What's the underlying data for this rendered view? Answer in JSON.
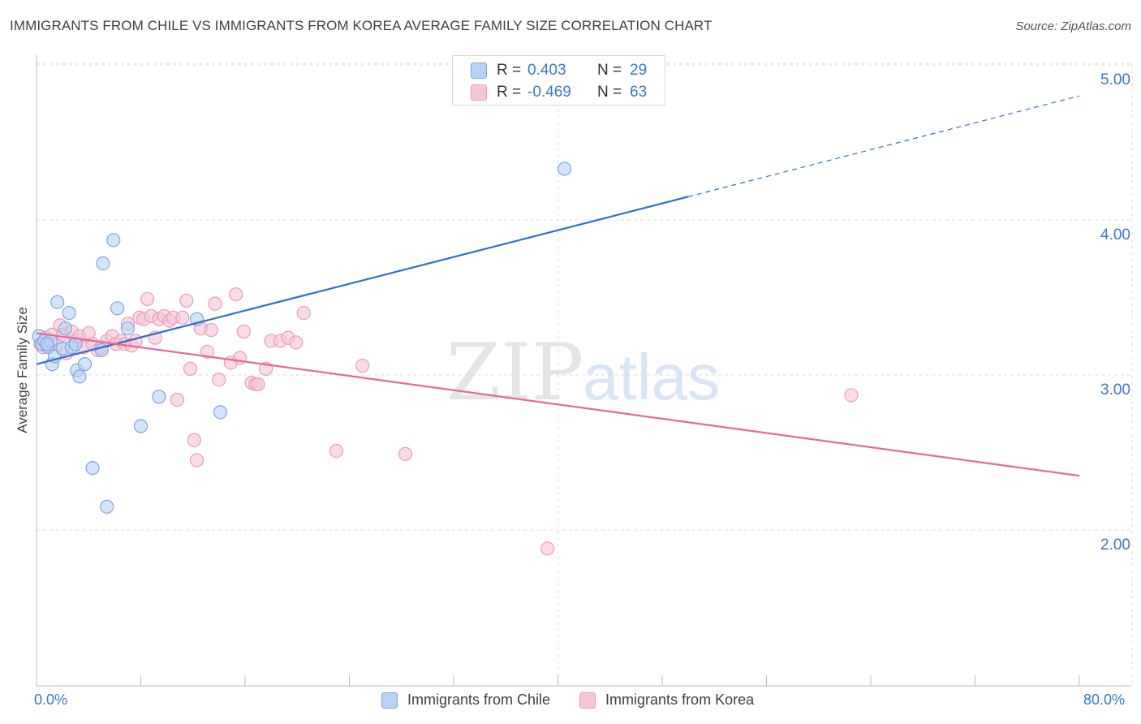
{
  "header": {
    "title": "IMMIGRANTS FROM CHILE VS IMMIGRANTS FROM KOREA AVERAGE FAMILY SIZE CORRELATION CHART",
    "source": "Source: ZipAtlas.com"
  },
  "watermark": {
    "zip": "ZIP",
    "atlas": "atlas"
  },
  "legend_top": {
    "chile": {
      "r_label": "R =",
      "r_value": "0.403",
      "n_label": "N =",
      "n_value": "29"
    },
    "korea": {
      "r_label": "R =",
      "r_value": "-0.469",
      "n_label": "N =",
      "n_value": "63"
    }
  },
  "colors": {
    "chile_fill": "#b8d2f5",
    "chile_stroke": "#7ba7e0",
    "chile_line": "#2e6fcf",
    "korea_fill": "#f8c5d6",
    "korea_stroke": "#eb9ab5",
    "korea_line": "#e46a95",
    "axis_text": "#3a78c9",
    "grid": "#dcdcdc"
  },
  "chart_data": {
    "type": "scatter",
    "title": "IMMIGRANTS FROM CHILE VS IMMIGRANTS FROM KOREA AVERAGE FAMILY SIZE CORRELATION CHART",
    "xlabel": "",
    "ylabel": "Average Family Size",
    "xlim": [
      0,
      80
    ],
    "ylim": [
      1.0,
      5.2
    ],
    "x_tick_labels": [
      "0.0%",
      "80.0%"
    ],
    "y_ticks": [
      2.0,
      3.0,
      4.0,
      5.0
    ],
    "y_tick_labels": [
      "2.00",
      "3.00",
      "4.00",
      "5.00"
    ],
    "grid": true,
    "legend": "bottom-center",
    "series": [
      {
        "name": "Immigrants from Chile",
        "r": 0.403,
        "n": 29,
        "trend": {
          "x0": 0,
          "y0": 3.07,
          "x1": 50,
          "y1": 4.15,
          "dashed_to_x": 80,
          "dashed_to_y": 4.8
        },
        "points": [
          [
            0.2,
            3.25
          ],
          [
            0.4,
            3.2
          ],
          [
            0.6,
            3.22
          ],
          [
            0.9,
            3.18
          ],
          [
            1.1,
            3.22
          ],
          [
            1.2,
            3.07
          ],
          [
            1.4,
            3.12
          ],
          [
            1.6,
            3.47
          ],
          [
            2.0,
            3.17
          ],
          [
            2.2,
            3.3
          ],
          [
            2.5,
            3.4
          ],
          [
            2.7,
            3.18
          ],
          [
            3.0,
            3.2
          ],
          [
            3.1,
            3.03
          ],
          [
            3.3,
            2.99
          ],
          [
            3.7,
            3.07
          ],
          [
            4.3,
            2.4
          ],
          [
            5.0,
            3.16
          ],
          [
            5.1,
            3.72
          ],
          [
            5.4,
            2.15
          ],
          [
            5.9,
            3.87
          ],
          [
            6.2,
            3.43
          ],
          [
            7.0,
            3.3
          ],
          [
            8.0,
            2.67
          ],
          [
            9.4,
            2.86
          ],
          [
            12.3,
            3.36
          ],
          [
            14.1,
            2.76
          ],
          [
            40.5,
            4.33
          ],
          [
            0.8,
            3.2
          ]
        ]
      },
      {
        "name": "Immigrants from Korea",
        "r": -0.469,
        "n": 63,
        "trend": {
          "x0": 0,
          "y0": 3.27,
          "x1": 80,
          "y1": 2.35
        },
        "points": [
          [
            0.3,
            3.2
          ],
          [
            0.5,
            3.18
          ],
          [
            0.7,
            3.24
          ],
          [
            0.9,
            3.19
          ],
          [
            1.2,
            3.26
          ],
          [
            1.5,
            3.2
          ],
          [
            1.8,
            3.32
          ],
          [
            2.0,
            3.26
          ],
          [
            2.3,
            3.14
          ],
          [
            2.7,
            3.28
          ],
          [
            3.0,
            3.22
          ],
          [
            3.3,
            3.25
          ],
          [
            3.6,
            3.18
          ],
          [
            4.0,
            3.27
          ],
          [
            4.3,
            3.2
          ],
          [
            4.7,
            3.16
          ],
          [
            5.0,
            3.18
          ],
          [
            5.4,
            3.22
          ],
          [
            5.8,
            3.25
          ],
          [
            6.1,
            3.2
          ],
          [
            6.5,
            3.22
          ],
          [
            6.8,
            3.2
          ],
          [
            7.0,
            3.33
          ],
          [
            7.3,
            3.19
          ],
          [
            7.6,
            3.22
          ],
          [
            7.9,
            3.37
          ],
          [
            8.2,
            3.36
          ],
          [
            8.5,
            3.49
          ],
          [
            8.8,
            3.38
          ],
          [
            9.1,
            3.24
          ],
          [
            9.4,
            3.36
          ],
          [
            9.8,
            3.38
          ],
          [
            10.2,
            3.35
          ],
          [
            10.5,
            3.37
          ],
          [
            10.8,
            2.84
          ],
          [
            11.2,
            3.37
          ],
          [
            11.5,
            3.48
          ],
          [
            11.8,
            3.04
          ],
          [
            12.1,
            2.58
          ],
          [
            12.3,
            2.45
          ],
          [
            12.6,
            3.3
          ],
          [
            13.1,
            3.15
          ],
          [
            13.4,
            3.29
          ],
          [
            13.7,
            3.46
          ],
          [
            14.0,
            2.97
          ],
          [
            14.9,
            3.08
          ],
          [
            15.3,
            3.52
          ],
          [
            15.6,
            3.11
          ],
          [
            15.9,
            3.28
          ],
          [
            16.5,
            2.95
          ],
          [
            16.8,
            2.94
          ],
          [
            17.0,
            2.94
          ],
          [
            17.6,
            3.04
          ],
          [
            18.0,
            3.22
          ],
          [
            18.7,
            3.22
          ],
          [
            19.3,
            3.24
          ],
          [
            19.9,
            3.21
          ],
          [
            20.5,
            3.4
          ],
          [
            23.0,
            2.51
          ],
          [
            25.0,
            3.06
          ],
          [
            28.3,
            2.49
          ],
          [
            39.2,
            1.88
          ],
          [
            62.5,
            2.87
          ]
        ]
      }
    ]
  },
  "legend_bottom": {
    "chile_label": "Immigrants from Chile",
    "korea_label": "Immigrants from Korea"
  }
}
